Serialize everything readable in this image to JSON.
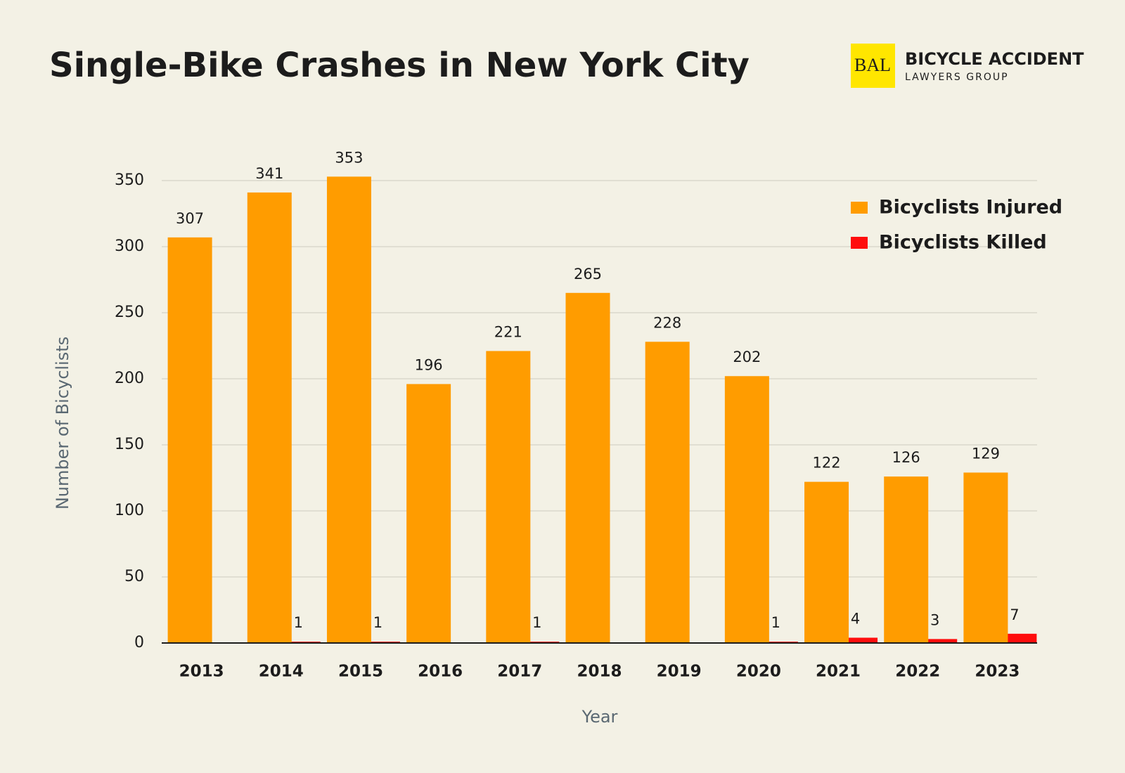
{
  "logo": {
    "mark": "BAL",
    "line1": "BICYCLE ACCIDENT",
    "line2": "LAWYERS GROUP"
  },
  "chart_data": {
    "type": "bar",
    "title": "Single-Bike Crashes in New York City",
    "x_label": "Year",
    "y_label": "Number of Bicyclists",
    "categories": [
      "2013",
      "2014",
      "2015",
      "2016",
      "2017",
      "2018",
      "2019",
      "2020",
      "2021",
      "2022",
      "2023"
    ],
    "series": [
      {
        "name": "Bicyclists Injured",
        "color": "#ff9c00",
        "values": [
          307,
          341,
          353,
          196,
          221,
          265,
          228,
          202,
          122,
          126,
          129
        ]
      },
      {
        "name": "Bicyclists Killed",
        "color": "#ff0d0d",
        "values": [
          null,
          1,
          1,
          null,
          1,
          null,
          null,
          1,
          4,
          3,
          7
        ]
      }
    ],
    "ylim": [
      0,
      350
    ],
    "yticks": [
      0,
      50,
      100,
      150,
      200,
      250,
      300,
      350
    ],
    "grid": true,
    "legend": "top-right"
  }
}
